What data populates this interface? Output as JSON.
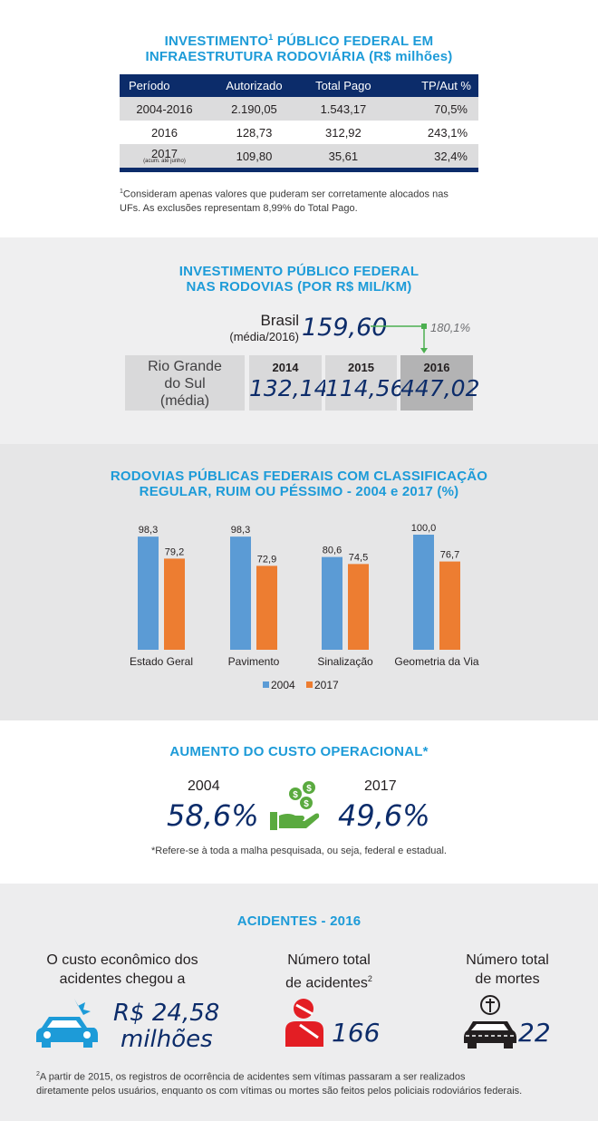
{
  "s1": {
    "title_line1": "INVESTIMENTO",
    "title_sup": "1",
    "title_line1b": " PÚBLICO FEDERAL EM",
    "title_line2": "INFRAESTRUTURA RODOVIÁRIA (R$ milhões)",
    "headers": [
      "Período",
      "Autorizado",
      "Total Pago",
      "TP/Aut %"
    ],
    "rows": [
      {
        "periodo": "2004-2016",
        "autorizado": "2.190,05",
        "total": "1.543,17",
        "pct": "70,5%",
        "note": ""
      },
      {
        "periodo": "2016",
        "autorizado": "128,73",
        "total": "312,92",
        "pct": "243,1%",
        "note": ""
      },
      {
        "periodo": "2017",
        "autorizado": "109,80",
        "total": "35,61",
        "pct": "32,4%",
        "note": "(acum. até junho)"
      }
    ],
    "footnote_sup": "1",
    "footnote_line1": "Consideram apenas  valores que puderam ser corretamente alocados nas",
    "footnote_line2": "UFs. As exclusões representam 8,99% do Total Pago."
  },
  "s2": {
    "title_line1": "INVESTIMENTO PÚBLICO FEDERAL",
    "title_line2": "NAS RODOVIAS (POR R$ MIL/KM)",
    "brasil_label": "Brasil",
    "brasil_sub": "(média/2016)",
    "brasil_value": "159,60",
    "growth": "180,1%",
    "rs_label_1": "Rio Grande",
    "rs_label_2": "do Sul",
    "rs_label_3": "(média)",
    "years": [
      {
        "year": "2014",
        "value": "132,14"
      },
      {
        "year": "2015",
        "value": "114,56"
      },
      {
        "year": "2016",
        "value": "447,02"
      }
    ]
  },
  "s3": {
    "title_line1": "RODOVIAS PÚBLICAS FEDERAIS COM CLASSIFICAÇÃO",
    "title_line2": "REGULAR, RUIM OU PÉSSIMO - 2004 e 2017 (%)"
  },
  "chart_data": {
    "type": "bar",
    "title": "RODOVIAS PÚBLICAS FEDERAIS COM CLASSIFICAÇÃO REGULAR, RUIM OU PÉSSIMO - 2004 e 2017 (%)",
    "categories": [
      "Estado Geral",
      "Pavimento",
      "Sinalização",
      "Geometria da Via"
    ],
    "series": [
      {
        "name": "2004",
        "values": [
          98.3,
          98.3,
          80.6,
          100.0
        ],
        "labels": [
          "98,3",
          "98,3",
          "80,6",
          "100,0"
        ],
        "color": "#5b9bd5"
      },
      {
        "name": "2017",
        "values": [
          79.2,
          72.9,
          74.5,
          76.7
        ],
        "labels": [
          "79,2",
          "72,9",
          "74,5",
          "76,7"
        ],
        "color": "#ed7d31"
      }
    ],
    "ylim": [
      0,
      100
    ],
    "grid": false,
    "legend": "bottom"
  },
  "s4": {
    "title": "AUMENTO DO CUSTO OPERACIONAL*",
    "year1": "2004",
    "value1": "58,6%",
    "year2": "2017",
    "value2": "49,6%",
    "note": "*Refere-se à toda a malha pesquisada, ou seja, federal e estadual.",
    "icon": "money-hand-icon"
  },
  "s5": {
    "title": "ACIDENTES - 2016",
    "cost_label_1": "O custo econômico dos",
    "cost_label_2": "acidentes chegou a",
    "cost_value_1": "R$ 24,58",
    "cost_value_2": "milhões",
    "acc_label_1": "Número total",
    "acc_label_2": "de acidentes",
    "acc_sup": "2",
    "acc_value": "166",
    "death_label_1": "Número total",
    "death_label_2": "de mortes",
    "death_value": "22",
    "footnote_sup": "2",
    "footnote_line1": "A partir de 2015, os registros de ocorrência de acidentes sem vítimas passaram a ser realizados",
    "footnote_line2": "diretamente pelos usuários, enquanto os com vítimas ou mortes são feitos pelos policiais rodoviários federais.",
    "colors": {
      "blue": "#1d9bd8",
      "red": "#e31e24",
      "navy": "#0c2c6a"
    }
  }
}
